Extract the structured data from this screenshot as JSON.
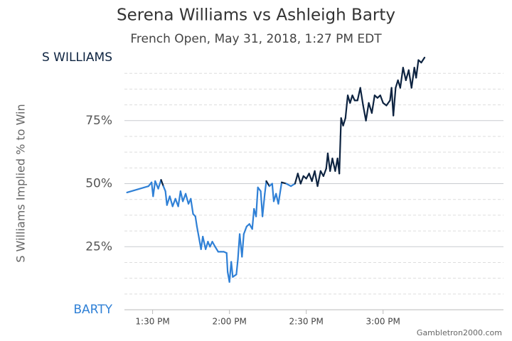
{
  "chart_data": {
    "type": "line",
    "title": "Serena Williams vs Ashleigh Barty",
    "subtitle": "French Open, May 31, 2018, 1:27 PM EDT",
    "ylabel": "S Williams Implied % to Win",
    "credit": "Gambletron2000.com",
    "threshold": 50,
    "color_above": "#0d2340",
    "color_below": "#2f80d6",
    "xlim": [
      799,
      947
    ],
    "ylim": [
      0,
      100
    ],
    "xticks": [
      {
        "value": 810,
        "label": "1:30 PM"
      },
      {
        "value": 840,
        "label": "2:00 PM"
      },
      {
        "value": 870,
        "label": "2:30 PM"
      },
      {
        "value": 900,
        "label": "3:00 PM"
      }
    ],
    "yticks": [
      {
        "value": 0,
        "label": "BARTY"
      },
      {
        "value": 25,
        "label": "25%"
      },
      {
        "value": 50,
        "label": "50%"
      },
      {
        "value": 75,
        "label": "75%"
      },
      {
        "value": 100,
        "label": "S WILLIAMS"
      }
    ],
    "yminor": [
      6.25,
      12.5,
      18.75,
      31.25,
      37.5,
      43.75,
      56.25,
      62.5,
      68.75,
      81.25,
      87.5,
      93.75
    ],
    "x": [
      800,
      808.4,
      809.6,
      810.2,
      811,
      812.2,
      813.3,
      814.2,
      815,
      815.6,
      816.7,
      817.8,
      818.9,
      820,
      820.9,
      821.8,
      822.9,
      824,
      824.9,
      825.8,
      826.7,
      827.3,
      828.2,
      828.9,
      829.6,
      830.7,
      831.6,
      832.4,
      833.3,
      834.4,
      835.6,
      836.7,
      837.8,
      838.9,
      839.3,
      840,
      840.7,
      841.3,
      842.7,
      843.3,
      844,
      844.9,
      845.6,
      846.7,
      847.8,
      848.9,
      849.6,
      850.4,
      851.1,
      852.2,
      852.9,
      853.8,
      854.4,
      855.6,
      856.7,
      857.3,
      858.2,
      859.1,
      860.4,
      862.2,
      864,
      865.6,
      866.7,
      867.8,
      868.9,
      870,
      871.1,
      872.2,
      873.3,
      874.4,
      875.6,
      876.7,
      877.8,
      878.4,
      879.3,
      880.2,
      881.3,
      882.2,
      882.9,
      883.6,
      884.4,
      885.3,
      886.2,
      887.1,
      888,
      888.9,
      890,
      891.1,
      892.2,
      893.3,
      894.4,
      895.6,
      896.7,
      897.8,
      898.9,
      900,
      901.3,
      902.7,
      903.3,
      904,
      904.9,
      905.8,
      906.7,
      907.8,
      908.9,
      910,
      911.1,
      912.2,
      912.9,
      913.8,
      914.9,
      916.2
    ],
    "values": [
      46.5,
      49,
      50.5,
      45,
      51,
      48,
      51.5,
      49,
      47,
      41.5,
      45,
      41,
      44,
      41,
      47,
      43,
      46,
      42,
      44,
      38,
      37,
      33,
      28,
      24,
      29,
      24,
      27,
      25,
      27,
      25,
      23,
      23,
      23,
      22.5,
      15,
      11,
      19,
      13,
      14,
      20,
      30,
      21,
      30,
      33,
      34,
      32,
      40,
      37,
      48.5,
      47,
      37,
      46,
      51,
      49,
      50,
      43,
      46,
      42,
      50.5,
      50,
      49,
      50,
      54,
      50,
      53,
      52,
      54,
      51,
      55,
      49,
      55,
      53,
      56,
      62,
      55,
      60,
      55,
      60,
      54,
      76,
      73,
      76,
      85,
      82,
      85,
      83,
      83,
      88,
      81,
      75,
      82,
      78,
      85,
      84,
      85,
      82,
      81,
      83,
      88,
      77,
      88,
      91,
      88,
      96,
      91,
      95,
      88,
      96,
      92,
      99,
      98,
      100
    ]
  }
}
